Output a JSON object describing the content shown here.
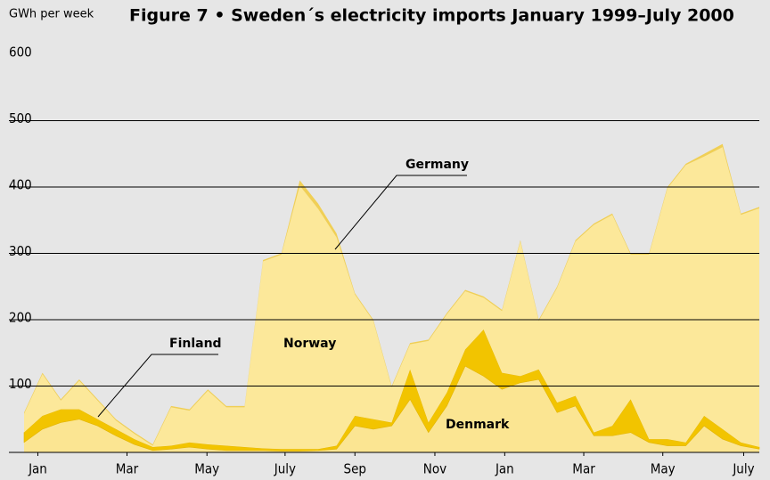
{
  "chart_data": {
    "type": "stacked_area",
    "title": "Figure 7 • Sweden´s electricity imports January 1999–July 2000",
    "y_label": "GWh per week",
    "x": [
      0,
      2,
      4,
      6,
      8,
      10,
      12,
      14,
      16,
      18,
      20,
      22,
      24,
      26,
      28,
      30,
      32,
      34,
      36,
      38,
      40,
      42,
      44,
      46,
      48,
      50,
      52,
      54,
      56,
      58,
      60,
      62,
      64,
      66,
      68,
      70,
      72,
      74,
      76,
      78,
      80
    ],
    "xlim": [
      0,
      80
    ],
    "xticks": [
      {
        "value": 1.5,
        "label": "Jan"
      },
      {
        "value": 11.2,
        "label": "Mar"
      },
      {
        "value": 19.9,
        "label": "May"
      },
      {
        "value": 28.4,
        "label": "July"
      },
      {
        "value": 36,
        "label": "Sep"
      },
      {
        "value": 44.7,
        "label": "Nov"
      },
      {
        "value": 52.3,
        "label": "Jan"
      },
      {
        "value": 60.9,
        "label": "Mar"
      },
      {
        "value": 69.5,
        "label": "May"
      },
      {
        "value": 78.3,
        "label": "July"
      }
    ],
    "ylim": [
      0,
      600
    ],
    "yticks": [
      100,
      200,
      300,
      400,
      500,
      600
    ],
    "grid": true,
    "series": [
      {
        "name": "Denmark",
        "color": "#fbe592",
        "values": [
          15,
          35,
          45,
          50,
          40,
          25,
          12,
          3,
          5,
          8,
          5,
          3,
          3,
          3,
          2,
          2,
          3,
          5,
          40,
          35,
          40,
          80,
          30,
          70,
          130,
          115,
          95,
          105,
          110,
          60,
          70,
          25,
          25,
          30,
          15,
          10,
          10,
          40,
          20,
          10,
          5
        ]
      },
      {
        "name": "Finland",
        "color": "#f2c400",
        "values": [
          15,
          20,
          20,
          15,
          10,
          10,
          8,
          5,
          5,
          7,
          7,
          7,
          5,
          3,
          3,
          3,
          2,
          5,
          15,
          15,
          5,
          45,
          15,
          20,
          25,
          70,
          25,
          10,
          15,
          15,
          15,
          5,
          15,
          50,
          5,
          10,
          5,
          15,
          15,
          5,
          3
        ]
      },
      {
        "name": "Norway",
        "color": "#fce89a",
        "values": [
          28,
          63,
          13,
          43,
          28,
          13,
          8,
          2,
          58,
          48,
          81,
          58,
          60,
          282,
          293,
          397,
          362,
          314,
          183,
          148,
          53,
          38,
          123,
          118,
          88,
          48,
          93,
          203,
          73,
          173,
          233,
          313,
          318,
          218,
          278,
          378,
          418,
          391,
          425,
          343,
          360
        ]
      },
      {
        "name": "Germany",
        "color": "#f0cf55",
        "values": [
          2,
          2,
          2,
          2,
          2,
          2,
          2,
          2,
          2,
          2,
          2,
          2,
          2,
          2,
          2,
          8,
          8,
          6,
          2,
          2,
          2,
          2,
          2,
          2,
          2,
          2,
          2,
          2,
          2,
          2,
          2,
          2,
          2,
          2,
          2,
          2,
          2,
          4,
          5,
          2,
          2
        ]
      }
    ]
  }
}
